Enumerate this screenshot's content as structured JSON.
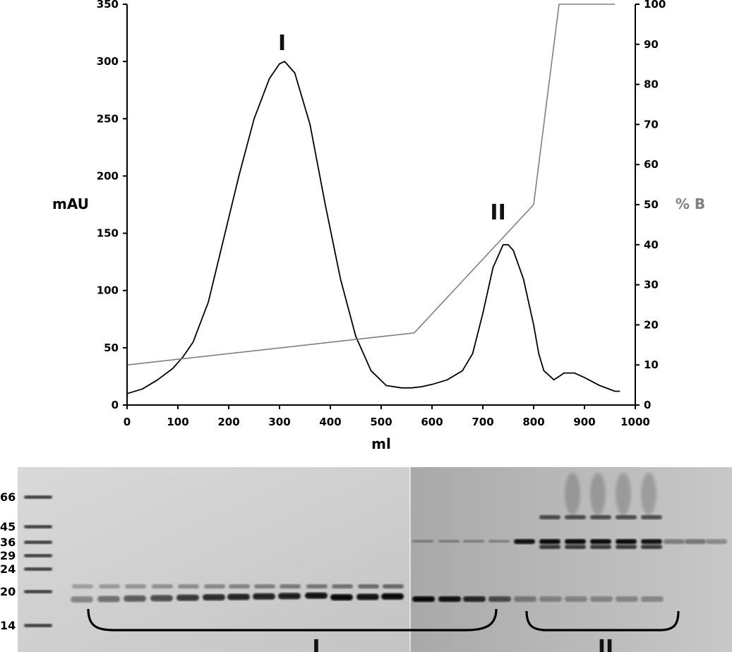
{
  "chart_data": {
    "type": "line",
    "xlabel": "ml",
    "ylabel_left": "mAU",
    "ylabel_right": "% B",
    "xlim": [
      0,
      1000
    ],
    "ylim_left": [
      0,
      350
    ],
    "ylim_right": [
      0,
      100
    ],
    "x_ticks": [
      "0",
      "100",
      "200",
      "300",
      "400",
      "500",
      "600",
      "700",
      "800",
      "900",
      "1000"
    ],
    "y_left_ticks": [
      "0",
      "50",
      "100",
      "150",
      "200",
      "250",
      "300",
      "350"
    ],
    "y_right_ticks": [
      "0",
      "10",
      "20",
      "30",
      "40",
      "50",
      "60",
      "70",
      "80",
      "90",
      "100"
    ],
    "series": [
      {
        "axis": "left",
        "color": "#000000",
        "x": [
          0,
          30,
          60,
          90,
          110,
          130,
          160,
          190,
          220,
          250,
          280,
          300,
          310,
          330,
          360,
          390,
          420,
          450,
          480,
          510,
          540,
          560,
          580,
          600,
          630,
          660,
          680,
          700,
          720,
          740,
          750,
          760,
          780,
          800,
          810,
          820,
          840,
          860,
          880,
          900,
          930,
          960,
          970
        ],
        "y": [
          10,
          14,
          22,
          32,
          42,
          55,
          90,
          145,
          200,
          250,
          285,
          298,
          300,
          290,
          245,
          175,
          110,
          60,
          30,
          17,
          15,
          15,
          16,
          18,
          22,
          30,
          45,
          80,
          120,
          140,
          140,
          135,
          110,
          70,
          45,
          30,
          22,
          28,
          28,
          24,
          17,
          12,
          12
        ]
      },
      {
        "axis": "right",
        "color": "#808080",
        "x": [
          0,
          565,
          800,
          850,
          960
        ],
        "y": [
          10,
          18,
          50,
          100,
          100
        ]
      }
    ],
    "annotations": [
      {
        "text": "I",
        "x": 305,
        "y": 310
      },
      {
        "text": "II",
        "x": 730,
        "y": 162
      }
    ]
  },
  "gel": {
    "markers": [
      "66",
      "45",
      "36",
      "29",
      "24",
      "20",
      "14"
    ],
    "group_labels": [
      "I",
      "II"
    ]
  }
}
